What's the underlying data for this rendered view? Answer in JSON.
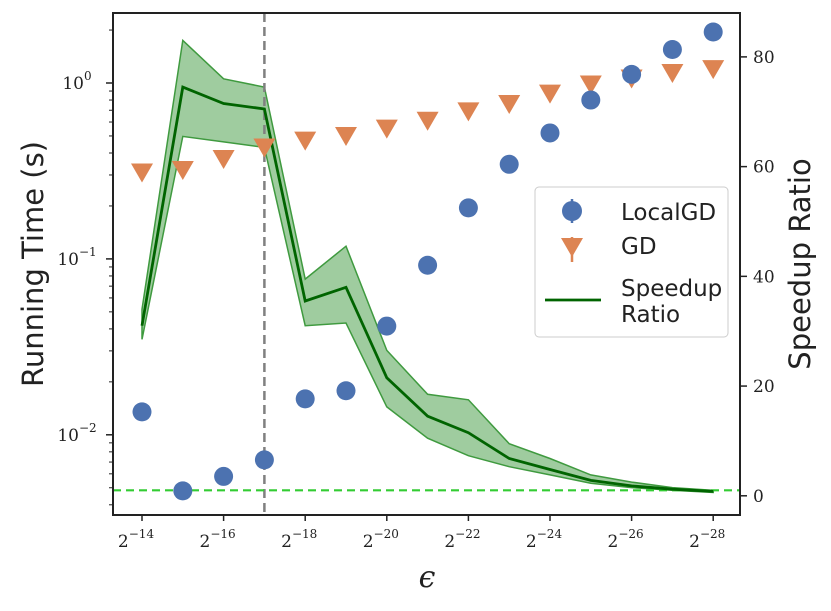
{
  "chart_data": {
    "type": "scatter+line",
    "title": "",
    "xlabel": "ϵ",
    "ylabel_left": "Running Time (s)",
    "ylabel_right": "Speedup Ratio",
    "x_exponents": [
      -14,
      -15,
      -16,
      -17,
      -18,
      -19,
      -20,
      -21,
      -22,
      -23,
      -24,
      -25,
      -26,
      -27,
      -28
    ],
    "x_ticks": [
      {
        "exp": -14,
        "base": "2",
        "sup": "−14"
      },
      {
        "exp": -16,
        "base": "2",
        "sup": "−16"
      },
      {
        "exp": -18,
        "base": "2",
        "sup": "−18"
      },
      {
        "exp": -20,
        "base": "2",
        "sup": "−20"
      },
      {
        "exp": -22,
        "base": "2",
        "sup": "−22"
      },
      {
        "exp": -24,
        "base": "2",
        "sup": "−24"
      },
      {
        "exp": -26,
        "base": "2",
        "sup": "−26"
      },
      {
        "exp": -28,
        "base": "2",
        "sup": "−28"
      }
    ],
    "y_left_scale": "log",
    "y_left_range": [
      0.0035,
      2.5
    ],
    "y_left_ticks": [
      {
        "value": 1,
        "base": "10",
        "sup": "0"
      },
      {
        "value": 0.1,
        "base": "10",
        "sup": "−1"
      },
      {
        "value": 0.01,
        "base": "10",
        "sup": "−2"
      }
    ],
    "y_right_range": [
      -3.5,
      88
    ],
    "y_right_ticks": [
      "0",
      "20",
      "40",
      "60",
      "80"
    ],
    "vertical_reference_exp": -17,
    "horizontal_reference_ratio": 1,
    "series": [
      {
        "name": "LocalGD",
        "axis": "left",
        "marker": "circle",
        "color": "#4c72b0",
        "values": [
          0.0135,
          0.0048,
          0.0058,
          0.0072,
          0.016,
          0.0178,
          0.0415,
          0.092,
          0.195,
          0.345,
          0.52,
          0.8,
          1.12,
          1.55,
          1.95
        ]
      },
      {
        "name": "GD",
        "axis": "left",
        "marker": "triangle-down",
        "color": "#dd8452",
        "values": [
          0.31,
          0.32,
          0.37,
          0.43,
          0.47,
          0.5,
          0.55,
          0.61,
          0.69,
          0.76,
          0.87,
          0.98,
          1.06,
          1.14,
          1.2
        ]
      },
      {
        "name": "Speedup Ratio",
        "legend_lines": [
          "Speedup",
          "Ratio"
        ],
        "axis": "right",
        "marker": "line",
        "color": "#006400",
        "band_color": "#3f9a3f",
        "values": [
          31,
          74.5,
          71.5,
          70.5,
          35.5,
          38,
          21.5,
          14.5,
          11.5,
          6.8,
          4.8,
          2.8,
          1.8,
          1.2,
          0.8
        ],
        "lower": [
          28.5,
          65.5,
          64.5,
          63.5,
          31,
          31.5,
          16.2,
          10.5,
          7.3,
          5.3,
          3.8,
          2.3,
          1.5,
          1.0,
          0.6
        ],
        "upper": [
          34,
          83,
          76,
          74.5,
          39.5,
          45.5,
          26.5,
          18.5,
          17.5,
          9.5,
          6.8,
          3.8,
          2.5,
          1.5,
          1.0
        ]
      }
    ],
    "legend_position": "center-right"
  }
}
